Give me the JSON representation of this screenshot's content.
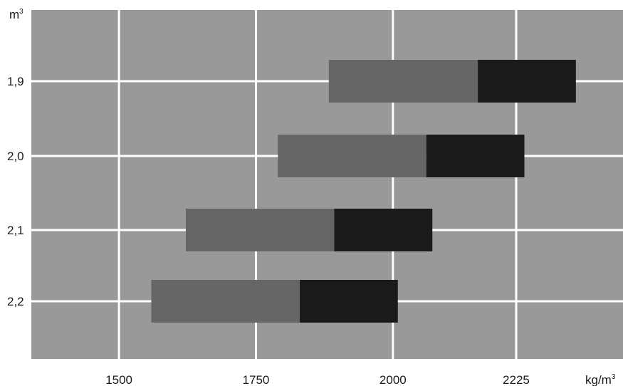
{
  "chart_data": {
    "type": "bar",
    "orientation": "horizontal-range",
    "y_unit": "m",
    "y_unit_sup": "3",
    "x_unit": "kg/m",
    "x_unit_sup": "3",
    "x_ticks": [
      1500,
      1750,
      2000,
      2225
    ],
    "xlim": [
      1340,
      2420
    ],
    "y_categories": [
      "1,9",
      "2,0",
      "2,1",
      "2,2"
    ],
    "grid": true,
    "colors": {
      "background": "#999999",
      "grid": "#ffffff",
      "segment_light": "#666666",
      "segment_dark": "#1a1a1a"
    },
    "series": [
      {
        "values_start": [
          1883,
          1790,
          1622,
          1559
        ],
        "values_mid": [
          2155,
          2061,
          1893,
          1830
        ],
        "values_end": [
          2334,
          2240,
          2072,
          2009
        ]
      }
    ]
  }
}
